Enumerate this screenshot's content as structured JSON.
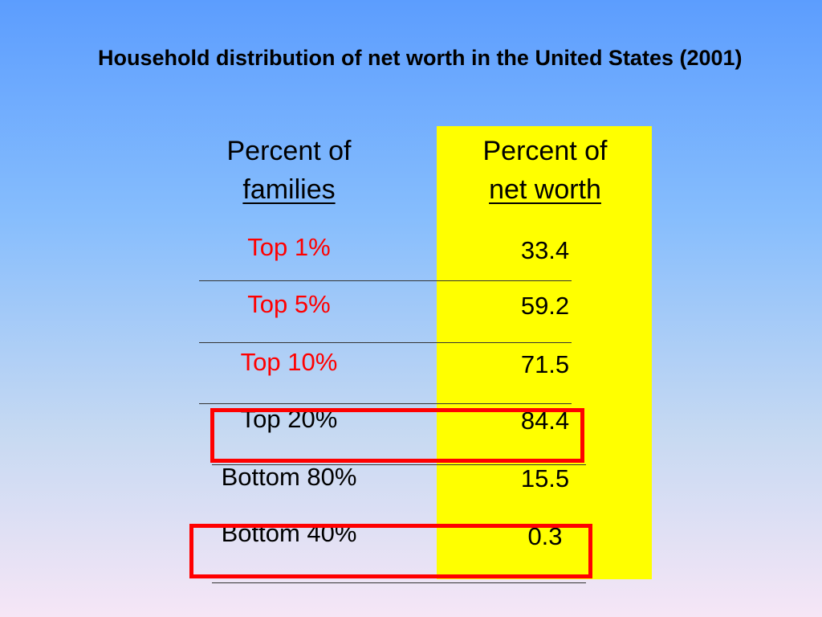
{
  "title": "Household distribution of net worth in the United States (2001)",
  "table": {
    "col1_header_line1": "Percent of",
    "col1_header_line2": "families",
    "col2_header_line1": "Percent of",
    "col2_header_line2": "net worth",
    "rows": [
      {
        "families": "Top 1%",
        "net_worth": "33.4",
        "label_color": "#ff0000"
      },
      {
        "families": "Top 5%",
        "net_worth": "59.2",
        "label_color": "#ff0000"
      },
      {
        "families": "Top 10%",
        "net_worth": "71.5",
        "label_color": "#ff0000"
      },
      {
        "families": "Top 20%",
        "net_worth": "84.4",
        "label_color": "#000000"
      },
      {
        "families": "Bottom 80%",
        "net_worth": "15.5",
        "label_color": "#000000"
      },
      {
        "families": "Bottom 40%",
        "net_worth": "0.3",
        "label_color": "#000000"
      }
    ]
  },
  "colors": {
    "highlight_column": "#ffff00",
    "highlight_box": "#ff0000"
  }
}
